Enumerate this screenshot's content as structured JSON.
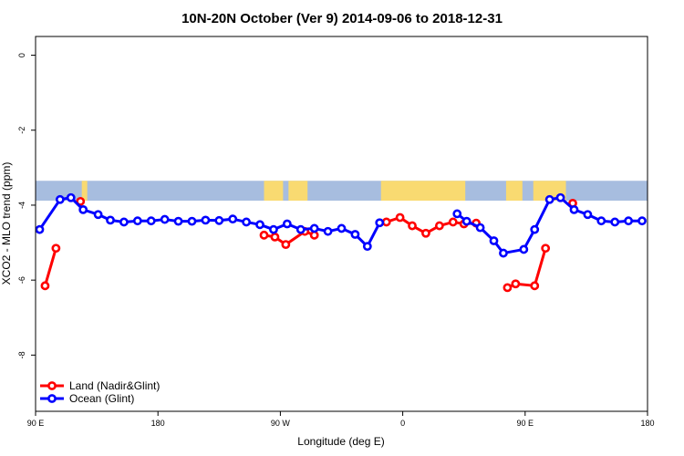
{
  "chart_data": {
    "type": "line",
    "title": "10N-20N October (Ver 9)   2014-09-06 to 2018-12-31",
    "xlabel": "Longitude (deg E)",
    "ylabel": "XCO2 - MLO trend (ppm)",
    "x_axis": {
      "description": "longitude measured eastward starting at 90 E, wrapping once",
      "range_deg_from_90E": [
        0,
        450
      ],
      "ticks": [
        {
          "pos": 0,
          "label": "90 E"
        },
        {
          "pos": 90,
          "label": "180"
        },
        {
          "pos": 180,
          "label": "90 W"
        },
        {
          "pos": 270,
          "label": "0"
        },
        {
          "pos": 360,
          "label": "90 E"
        },
        {
          "pos": 450,
          "label": "180"
        }
      ]
    },
    "y_axis": {
      "range": [
        -9.5,
        0.5
      ],
      "ticks": [
        0,
        -2,
        -4,
        -6,
        -8
      ]
    },
    "grid": false,
    "map_band": {
      "y_top": -3.35,
      "y_bottom": -3.88,
      "ocean_color": "#a7bddf",
      "land_color": "#f9da71",
      "land_spans": [
        [
          34,
          38
        ],
        [
          168,
          182
        ],
        [
          186,
          200
        ],
        [
          254,
          316
        ],
        [
          346,
          358
        ],
        [
          366,
          390
        ]
      ]
    },
    "legend": {
      "placement": "bottom-left",
      "entries": [
        {
          "label": "Land (Nadir&Glint)",
          "color": "#ff0000"
        },
        {
          "label": "Ocean (Glint)",
          "color": "#0000ff"
        }
      ]
    },
    "series": [
      {
        "name": "Land (Nadir&Glint)",
        "color": "#ff0000",
        "segments": [
          [
            [
              7,
              -6.15
            ],
            [
              15,
              -5.15
            ]
          ],
          [
            [
              33,
              -3.9
            ]
          ],
          [
            [
              168,
              -4.8
            ],
            [
              176,
              -4.85
            ],
            [
              184,
              -5.05
            ],
            [
              198,
              -4.7
            ],
            [
              205,
              -4.8
            ]
          ],
          [
            [
              258,
              -4.45
            ],
            [
              268,
              -4.33
            ],
            [
              277,
              -4.55
            ],
            [
              287,
              -4.75
            ],
            [
              297,
              -4.55
            ],
            [
              307,
              -4.45
            ],
            [
              315,
              -4.5
            ],
            [
              324,
              -4.48
            ]
          ],
          [
            [
              347,
              -6.2
            ],
            [
              353,
              -6.1
            ],
            [
              367,
              -6.15
            ],
            [
              375,
              -5.15
            ]
          ],
          [
            [
              395,
              -3.95
            ]
          ]
        ]
      },
      {
        "name": "Ocean (Glint)",
        "color": "#0000ff",
        "segments": [
          [
            [
              3,
              -4.65
            ],
            [
              18,
              -3.85
            ],
            [
              26,
              -3.8
            ],
            [
              35,
              -4.12
            ],
            [
              46,
              -4.25
            ],
            [
              55,
              -4.4
            ],
            [
              65,
              -4.45
            ],
            [
              75,
              -4.42
            ],
            [
              85,
              -4.42
            ],
            [
              95,
              -4.38
            ],
            [
              105,
              -4.43
            ],
            [
              115,
              -4.43
            ],
            [
              125,
              -4.4
            ],
            [
              135,
              -4.41
            ],
            [
              145,
              -4.37
            ],
            [
              155,
              -4.45
            ],
            [
              165,
              -4.52
            ],
            [
              175,
              -4.65
            ],
            [
              185,
              -4.5
            ],
            [
              195,
              -4.65
            ],
            [
              205,
              -4.62
            ],
            [
              215,
              -4.7
            ],
            [
              225,
              -4.62
            ],
            [
              235,
              -4.78
            ],
            [
              244,
              -5.1
            ],
            [
              253,
              -4.47
            ]
          ],
          [
            [
              310,
              -4.23
            ],
            [
              317,
              -4.43
            ],
            [
              327,
              -4.6
            ],
            [
              337,
              -4.95
            ],
            [
              344,
              -5.28
            ],
            [
              359,
              -5.18
            ],
            [
              367,
              -4.65
            ],
            [
              378,
              -3.85
            ],
            [
              386,
              -3.8
            ],
            [
              396,
              -4.12
            ],
            [
              406,
              -4.25
            ],
            [
              416,
              -4.42
            ],
            [
              426,
              -4.45
            ],
            [
              436,
              -4.42
            ],
            [
              446,
              -4.42
            ]
          ]
        ]
      }
    ]
  }
}
